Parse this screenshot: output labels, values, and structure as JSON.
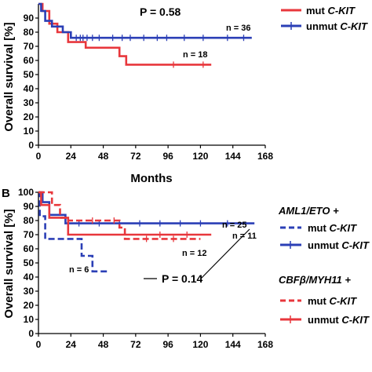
{
  "chart_data": [
    {
      "type": "line",
      "panel": "A",
      "p_value": "P = 0.58",
      "ylabel": "Overall survival [%]",
      "xlabel": "Months",
      "xticks": [
        "0",
        "24",
        "48",
        "72",
        "96",
        "120",
        "144",
        "168"
      ],
      "yticks": [
        "0",
        "10",
        "20",
        "30",
        "40",
        "50",
        "60",
        "70",
        "80",
        "90"
      ],
      "xlim": [
        0,
        168
      ],
      "ylim": [
        0,
        100
      ],
      "legend": [
        {
          "label": "mut ",
          "italic": "C-KIT",
          "color": "#e8373c",
          "dash": false
        },
        {
          "label": "unmut ",
          "italic": "C-KIT",
          "color": "#2b3fb6",
          "dash": false
        }
      ],
      "series": [
        {
          "name": "mut C-KIT",
          "color": "#e8373c",
          "dash": false,
          "x": [
            0,
            3,
            3,
            8,
            8,
            14,
            14,
            22,
            22,
            35,
            35,
            60,
            60,
            65,
            65,
            128
          ],
          "y": [
            100,
            100,
            95,
            95,
            86,
            86,
            80,
            80,
            73,
            73,
            69,
            69,
            63,
            63,
            57,
            57
          ],
          "censor_x": [
            100,
            122
          ],
          "end_label": "n = 18"
        },
        {
          "name": "unmut C-KIT",
          "color": "#2b3fb6",
          "dash": false,
          "x": [
            0,
            2,
            2,
            5,
            5,
            10,
            10,
            18,
            18,
            24,
            24,
            158
          ],
          "y": [
            100,
            100,
            95,
            95,
            88,
            88,
            84,
            84,
            80,
            80,
            76,
            76
          ],
          "censor_x": [
            28,
            31,
            33,
            36,
            40,
            45,
            55,
            62,
            68,
            78,
            88,
            95,
            108,
            122,
            140,
            152
          ],
          "end_label": "n = 36"
        }
      ]
    },
    {
      "type": "line",
      "panel": "B",
      "p_value": "P = 0.14",
      "ylabel": "Overall survival [%]",
      "xlabel": "",
      "xticks": [
        "0",
        "24",
        "48",
        "72",
        "96",
        "120",
        "144",
        "168"
      ],
      "yticks": [
        "0",
        "10",
        "20",
        "30",
        "40",
        "50",
        "60",
        "70",
        "80",
        "90",
        "100"
      ],
      "xlim": [
        0,
        168
      ],
      "ylim": [
        0,
        100
      ],
      "legend_groups": [
        {
          "title": "AML1/ETO +",
          "items": [
            {
              "label": "mut ",
              "italic": "C-KIT",
              "color": "#2b3fb6",
              "dash": true
            },
            {
              "label": "unmut ",
              "italic": "C-KIT",
              "color": "#2b3fb6",
              "dash": false
            }
          ]
        },
        {
          "title_pre": "CBF",
          "title_greek": "β",
          "title_post": "/MYH11 +",
          "items": [
            {
              "label": "mut ",
              "italic": "C-KIT",
              "color": "#e8373c",
              "dash": true
            },
            {
              "label": "unmut ",
              "italic": "C-KIT",
              "color": "#e8373c",
              "dash": false
            }
          ]
        }
      ],
      "series": [
        {
          "name": "AML1/ETO + unmut C-KIT",
          "color": "#2b3fb6",
          "dash": false,
          "x": [
            0,
            3,
            3,
            8,
            8,
            20,
            20,
            160
          ],
          "y": [
            100,
            100,
            93,
            93,
            84,
            84,
            78,
            78
          ],
          "censor_x": [
            30,
            45,
            60,
            75,
            90,
            105,
            120,
            140
          ],
          "end_label": "n = 25"
        },
        {
          "name": "AML1/ETO + mut C-KIT",
          "color": "#2b3fb6",
          "dash": true,
          "x": [
            0,
            1,
            1,
            5,
            5,
            32,
            32,
            40,
            40,
            52
          ],
          "y": [
            100,
            100,
            83,
            83,
            67,
            67,
            55,
            55,
            44,
            44
          ],
          "censor_x": [],
          "end_label": "n = 6"
        },
        {
          "name": "CBFβ/MYH11 + mut C-KIT",
          "color": "#e8373c",
          "dash": true,
          "x": [
            0,
            10,
            10,
            16,
            16,
            22,
            22,
            60,
            60,
            64,
            64,
            120
          ],
          "y": [
            100,
            100,
            91,
            91,
            82,
            82,
            80,
            80,
            75,
            75,
            67,
            67
          ],
          "censor_x": [
            40,
            56,
            80,
            100
          ],
          "end_label": "n = 12"
        },
        {
          "name": "CBFβ/MYH11 + unmut C-KIT",
          "color": "#e8373c",
          "dash": false,
          "x": [
            0,
            2,
            2,
            8,
            8,
            22,
            22,
            128
          ],
          "y": [
            100,
            100,
            91,
            91,
            82,
            82,
            70,
            70
          ],
          "censor_x": [
            90,
            110
          ],
          "end_label": "n = 11"
        }
      ]
    }
  ],
  "labels": {
    "panel_b": "B",
    "mut_a": "mut ",
    "unmut_a": "unmut ",
    "ckit": "C-KIT",
    "group1_title": "AML1/ETO +",
    "group2_pre": "CBF",
    "group2_greek": "β",
    "group2_post": "/MYH11 +"
  }
}
